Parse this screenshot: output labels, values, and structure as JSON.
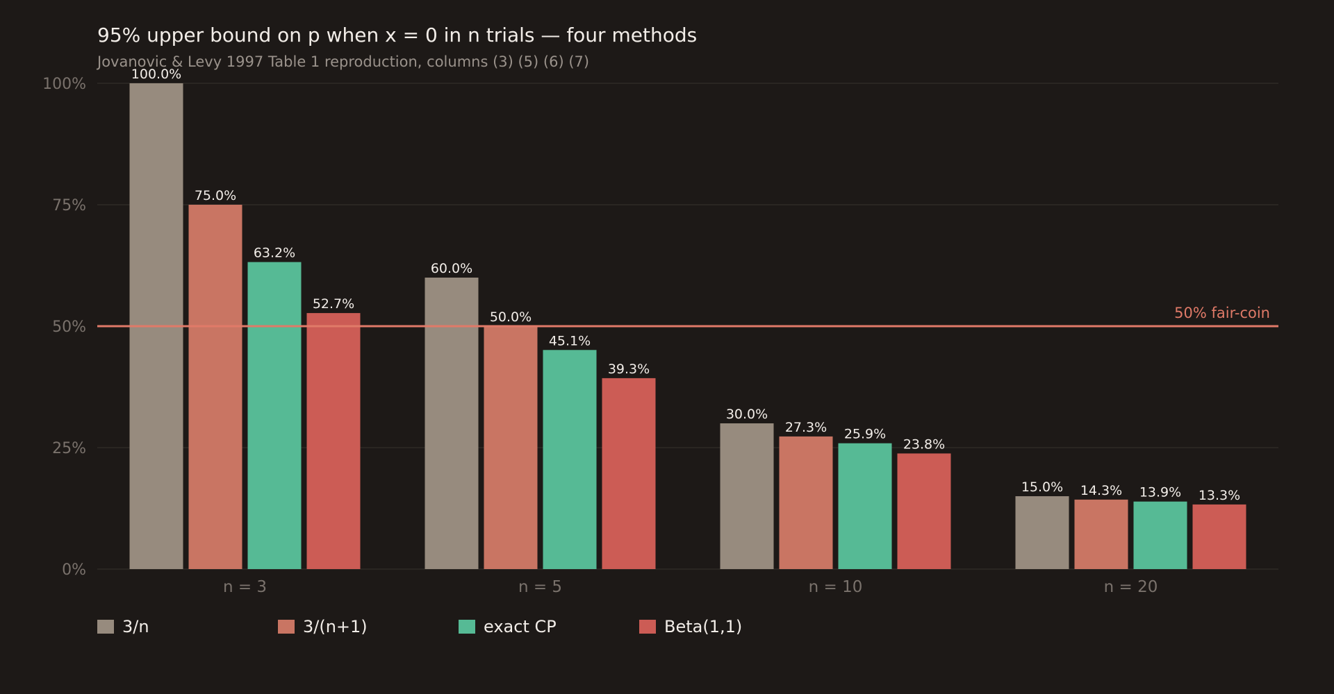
{
  "chart_data": {
    "type": "bar",
    "title": "95% upper bound on p when x = 0 in n trials — four methods",
    "subtitle": "Jovanovic & Levy 1997 Table 1 reproduction, columns (3) (5) (6) (7)",
    "categories": [
      "n = 3",
      "n = 5",
      "n = 10",
      "n = 20"
    ],
    "series": [
      {
        "name": "3/n",
        "color": "#978b7e",
        "values": [
          100.0,
          60.0,
          30.0,
          15.0
        ],
        "labels": [
          "100.0%",
          "60.0%",
          "30.0%",
          "15.0%"
        ]
      },
      {
        "name": "3/(n+1)",
        "color": "#c97563",
        "values": [
          75.0,
          50.0,
          27.3,
          14.3
        ],
        "labels": [
          "75.0%",
          "50.0%",
          "27.3%",
          "14.3%"
        ]
      },
      {
        "name": "exact CP",
        "color": "#56ba95",
        "values": [
          63.2,
          45.1,
          25.9,
          13.9
        ],
        "labels": [
          "63.2%",
          "45.1%",
          "25.9%",
          "13.9%"
        ]
      },
      {
        "name": "Beta(1,1)",
        "color": "#cc5c55",
        "values": [
          52.7,
          39.3,
          23.8,
          13.3
        ],
        "labels": [
          "52.7%",
          "39.3%",
          "23.8%",
          "13.3%"
        ]
      }
    ],
    "ylim": [
      0,
      100
    ],
    "yticks": [
      0,
      25,
      50,
      75,
      100
    ],
    "ytick_labels": [
      "0%",
      "25%",
      "50%",
      "75%",
      "100%"
    ],
    "grid": true,
    "legend_position": "bottom-left",
    "reference_line": {
      "value": 50,
      "label": "50% fair-coin",
      "color": "#e07a68"
    },
    "xlabel": "",
    "ylabel": ""
  }
}
